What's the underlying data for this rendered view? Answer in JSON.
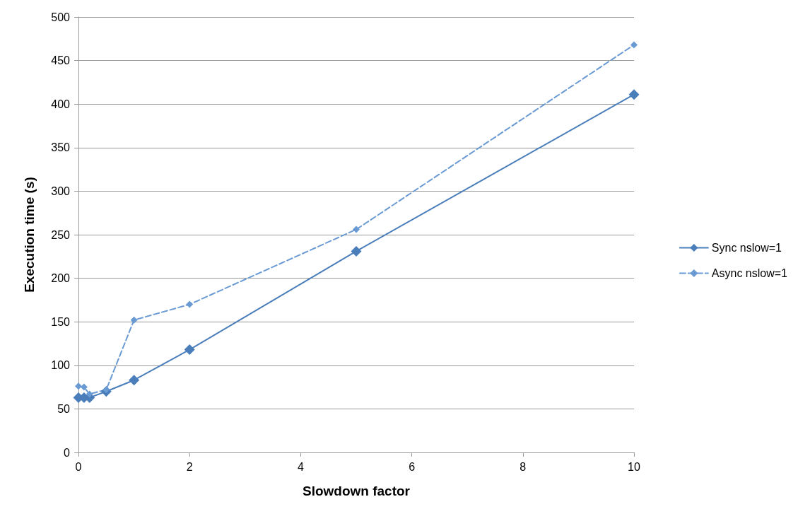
{
  "chart_data": {
    "type": "line",
    "xlabel": "Slowdown factor",
    "ylabel": "Execution time (s)",
    "x": [
      0,
      0.1,
      0.2,
      0.5,
      1,
      2,
      5,
      10
    ],
    "series": [
      {
        "name": "Sync nslow=1",
        "color": "#4a7ebb",
        "values": [
          63,
          63,
          63,
          70,
          83,
          118,
          231,
          411
        ],
        "line_style": "solid"
      },
      {
        "name": "Async nslow=1",
        "color": "#6a9ad3",
        "values": [
          76,
          75,
          67,
          72,
          152,
          170,
          256,
          468
        ],
        "line_style": "dashed"
      }
    ],
    "xlim": [
      0,
      10
    ],
    "xticks": [
      0,
      2,
      4,
      6,
      8,
      10
    ],
    "ylim": [
      0,
      500
    ],
    "yticks": [
      0,
      50,
      100,
      150,
      200,
      250,
      300,
      350,
      400,
      450,
      500
    ],
    "grid": "y",
    "legend": "right",
    "marker": "diamond"
  }
}
